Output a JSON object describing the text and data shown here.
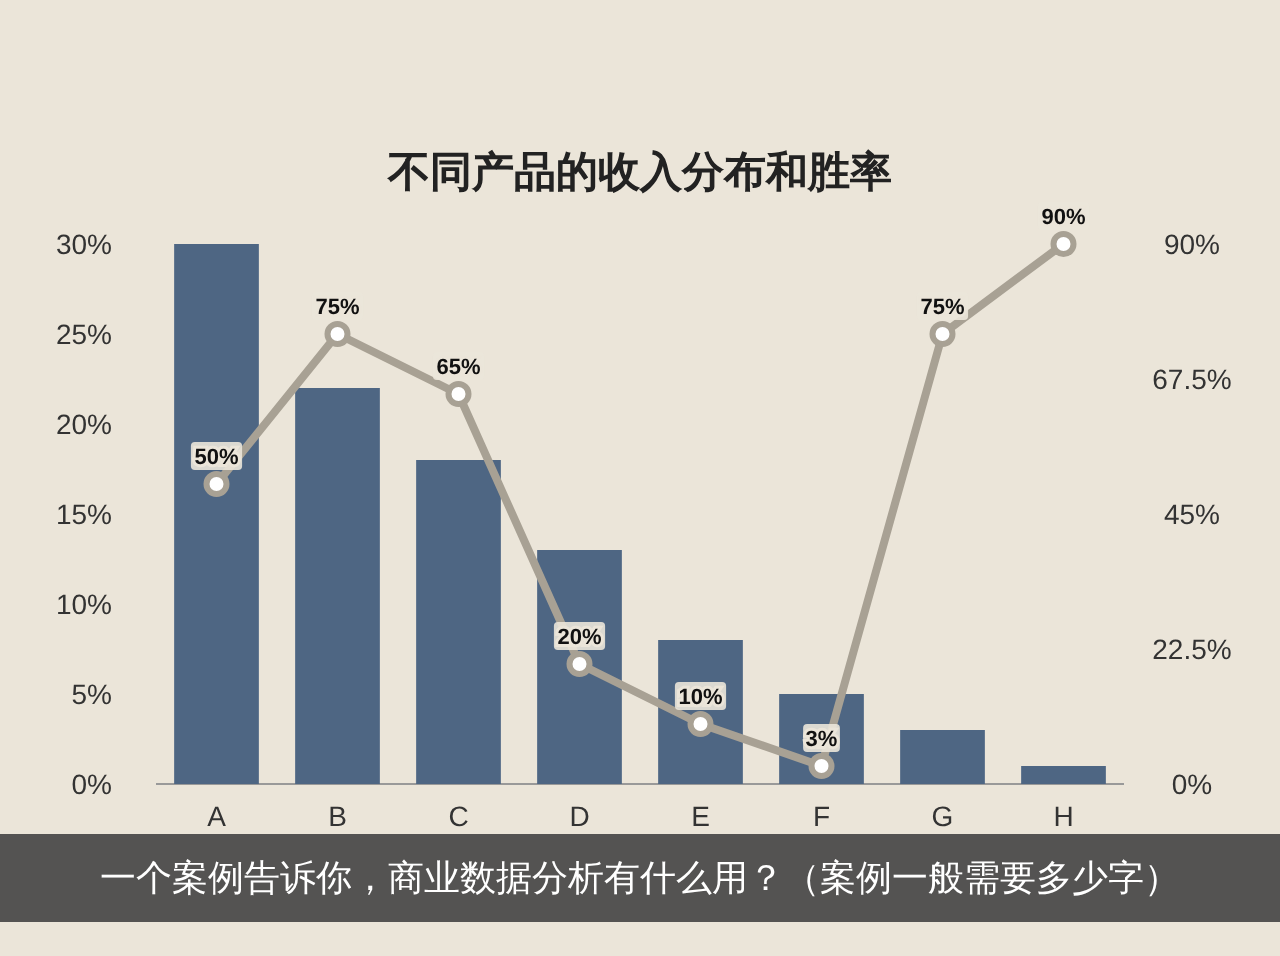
{
  "chart_data": {
    "type": "bar",
    "title": "不同产品的收入分布和胜率",
    "categories": [
      "A",
      "B",
      "C",
      "D",
      "E",
      "F",
      "G",
      "H"
    ],
    "series": [
      {
        "color": "#4e6683",
        "values": [
          30,
          22,
          18,
          13,
          8,
          5,
          3,
          1
        ]
      },
      {
        "type": "line",
        "axis": "y2",
        "color": "#a8a194",
        "values": [
          50,
          75,
          65,
          20,
          10,
          3,
          75,
          90
        ],
        "value_labels": [
          "50%",
          "75%",
          "65%",
          "20%",
          "10%",
          "3%",
          "75%",
          "90%"
        ]
      }
    ],
    "ylim": [
      0,
      30
    ],
    "yticks": [
      {
        "value": 0,
        "label": "0%"
      },
      {
        "value": 5,
        "label": "5%"
      },
      {
        "value": 10,
        "label": "10%"
      },
      {
        "value": 15,
        "label": "15%"
      },
      {
        "value": 20,
        "label": "20%"
      },
      {
        "value": 25,
        "label": "25%"
      },
      {
        "value": 30,
        "label": "30%"
      }
    ],
    "y2lim": [
      0,
      90
    ],
    "y2ticks": [
      {
        "value": 0,
        "label": "0%"
      },
      {
        "value": 22.5,
        "label": "22.5%"
      },
      {
        "value": 45,
        "label": "45%"
      },
      {
        "value": 67.5,
        "label": "67.5%"
      },
      {
        "value": 90,
        "label": "90%"
      }
    ],
    "marker": "circle",
    "annotations": [
      "一个案例告诉你，商业数据分析有什么用？（案例一般需要多少字）"
    ]
  }
}
